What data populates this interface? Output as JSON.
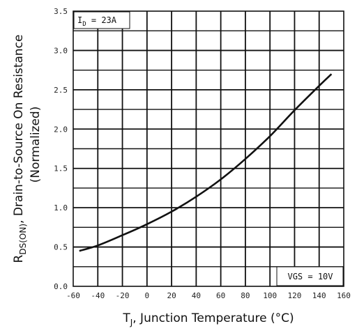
{
  "chart_data": {
    "type": "line",
    "xlabel": "T",
    "xlabel_sub": "J",
    "xlabel_rest": ", Junction Temperature (°C)",
    "ylabel_main": "R",
    "ylabel_sub": "DS(ON)",
    "ylabel_rest": ", Drain-to-Source On Resistance",
    "ylabel_line2": "(Normalized)",
    "xlim": [
      -60,
      160
    ],
    "ylim": [
      0.0,
      3.5
    ],
    "x_ticks": [
      -60,
      -40,
      -20,
      0,
      20,
      40,
      60,
      80,
      100,
      120,
      140,
      160
    ],
    "x_tick_labels": [
      "-60",
      "-40",
      "-20",
      "0",
      "20",
      "40",
      "60",
      "80",
      "100",
      "120",
      "140",
      "160"
    ],
    "y_ticks": [
      0.0,
      0.5,
      1.0,
      1.5,
      2.0,
      2.5,
      3.0,
      3.5
    ],
    "y_tick_labels": [
      "0.0",
      "0.5",
      "1.0",
      "1.5",
      "2.0",
      "2.5",
      "3.0",
      "3.5"
    ],
    "grid": true,
    "series": [
      {
        "x": [
          -55,
          -40,
          -20,
          0,
          20,
          40,
          60,
          80,
          100,
          120,
          140,
          150
        ],
        "y": [
          0.45,
          0.52,
          0.65,
          0.79,
          0.95,
          1.14,
          1.36,
          1.62,
          1.91,
          2.24,
          2.55,
          2.7
        ]
      }
    ],
    "annotations": [
      {
        "main": "I",
        "sub": "D",
        "rest": " = 23A"
      },
      {
        "text": "VGS = 10V"
      }
    ]
  }
}
